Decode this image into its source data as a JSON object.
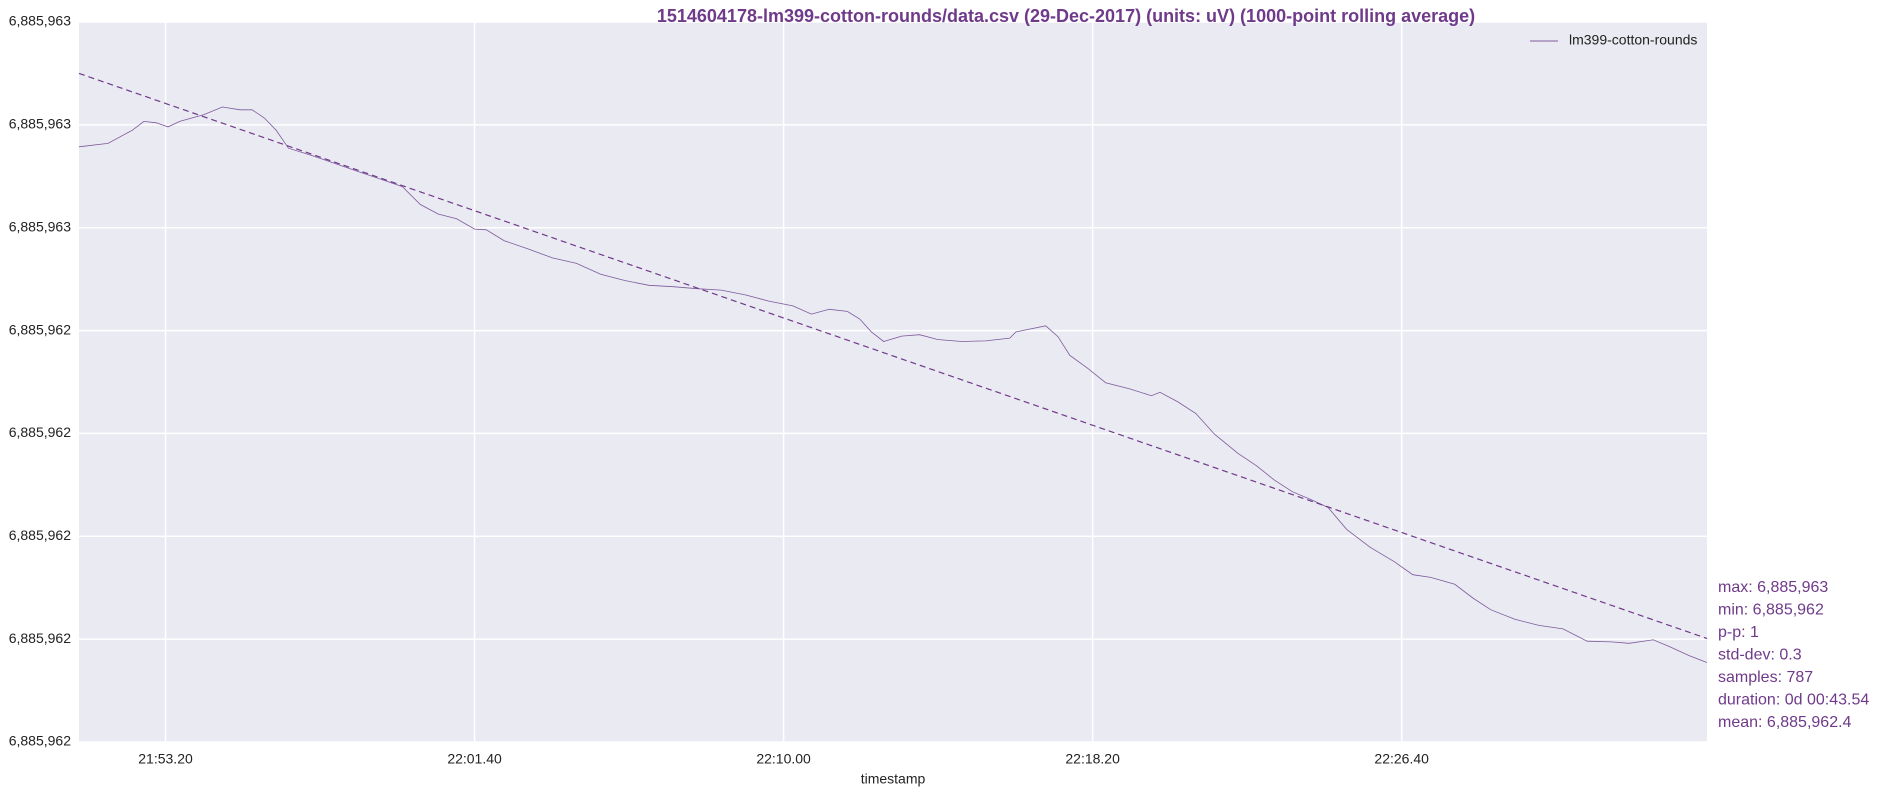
{
  "chart_data": {
    "type": "line",
    "title": "1514604178-lm399-cotton-rounds/data.csv (29-Dec-2017) (units: uV) (1000-point rolling average)",
    "xlabel": "timestamp",
    "grid": true,
    "legend": "upper right",
    "xlim": [
      78660,
      81294
    ],
    "xticks": [
      {
        "value": 78800,
        "label": "21:53.20"
      },
      {
        "value": 79300,
        "label": "22:01.40"
      },
      {
        "value": 79800,
        "label": "22:10.00"
      },
      {
        "value": 80300,
        "label": "22:18.20"
      },
      {
        "value": 80800,
        "label": "22:26.40"
      }
    ],
    "ylim": [
      6885961.8,
      6885962.85
    ],
    "yticks": [
      {
        "value": 6885961.8,
        "label": "6,885,962"
      },
      {
        "value": 6885961.95,
        "label": "6,885,962"
      },
      {
        "value": 6885962.1,
        "label": "6,885,962"
      },
      {
        "value": 6885962.25,
        "label": "6,885,962"
      },
      {
        "value": 6885962.4,
        "label": "6,885,962"
      },
      {
        "value": 6885962.55,
        "label": "6,885,963"
      },
      {
        "value": 6885962.7,
        "label": "6,885,963"
      },
      {
        "value": 6885962.85,
        "label": "6,885,963"
      }
    ],
    "x": [
      78660,
      78707,
      78746,
      78765,
      78785,
      78804,
      78823,
      78862,
      78892,
      78921,
      78940,
      78960,
      78979,
      78999,
      79038,
      79076,
      79115,
      79154,
      79183,
      79212,
      79241,
      79271,
      79300,
      79319,
      79348,
      79387,
      79426,
      79465,
      79504,
      79543,
      79582,
      79621,
      79660,
      79699,
      79738,
      79776,
      79815,
      79845,
      79874,
      79903,
      79923,
      79942,
      79962,
      79991,
      80020,
      80049,
      80088,
      80127,
      80166,
      80176,
      80224,
      80244,
      80263,
      80292,
      80321,
      80360,
      80395,
      80409,
      80438,
      80467,
      80497,
      80535,
      80565,
      80594,
      80623,
      80652,
      80681,
      80711,
      80749,
      80788,
      80818,
      80847,
      80886,
      80915,
      80944,
      80983,
      81022,
      81061,
      81100,
      81139,
      81168,
      81207,
      81236,
      81265,
      81294
    ],
    "series": [
      {
        "name": "lm399-cotton-rounds",
        "color": "#7d5a9c",
        "values": [
          6885962.668,
          6885962.673,
          6885962.692,
          6885962.705,
          6885962.703,
          6885962.697,
          6885962.705,
          6885962.715,
          6885962.726,
          6885962.722,
          6885962.722,
          6885962.71,
          6885962.692,
          6885962.666,
          6885962.655,
          6885962.643,
          6885962.631,
          6885962.619,
          6885962.61,
          6885962.584,
          6885962.57,
          6885962.563,
          6885962.548,
          6885962.547,
          6885962.531,
          6885962.519,
          6885962.506,
          6885962.498,
          6885962.482,
          6885962.473,
          6885962.466,
          6885962.464,
          6885962.461,
          6885962.459,
          6885962.452,
          6885962.443,
          6885962.436,
          6885962.424,
          6885962.431,
          6885962.428,
          6885962.417,
          6885962.398,
          6885962.384,
          6885962.392,
          6885962.394,
          6885962.387,
          6885962.384,
          6885962.385,
          6885962.389,
          6885962.398,
          6885962.407,
          6885962.391,
          6885962.364,
          6885962.345,
          6885962.324,
          6885962.315,
          6885962.305,
          6885962.31,
          6885962.296,
          6885962.279,
          6885962.249,
          6885962.221,
          6885962.203,
          6885962.182,
          6885962.165,
          6885962.154,
          6885962.142,
          6885962.11,
          6885962.084,
          6885962.063,
          6885962.044,
          6885962.04,
          6885962.03,
          6885962.01,
          6885961.993,
          6885961.979,
          6885961.97,
          6885961.965,
          6885961.947,
          6885961.946,
          6885961.944,
          6885961.949,
          6885961.938,
          6885961.926,
          6885961.916
        ]
      }
    ],
    "trend": {
      "color": "#6f3a8a",
      "x": [
        78660,
        81294
      ],
      "values": [
        6885962.775,
        6885961.951
      ]
    },
    "stats": [
      "max: 6,885,963",
      "min: 6,885,962",
      "p-p: 1",
      "std-dev: 0.3",
      "samples: 787",
      "duration: 0d 00:43.54",
      "mean: 6,885,962.4"
    ]
  }
}
